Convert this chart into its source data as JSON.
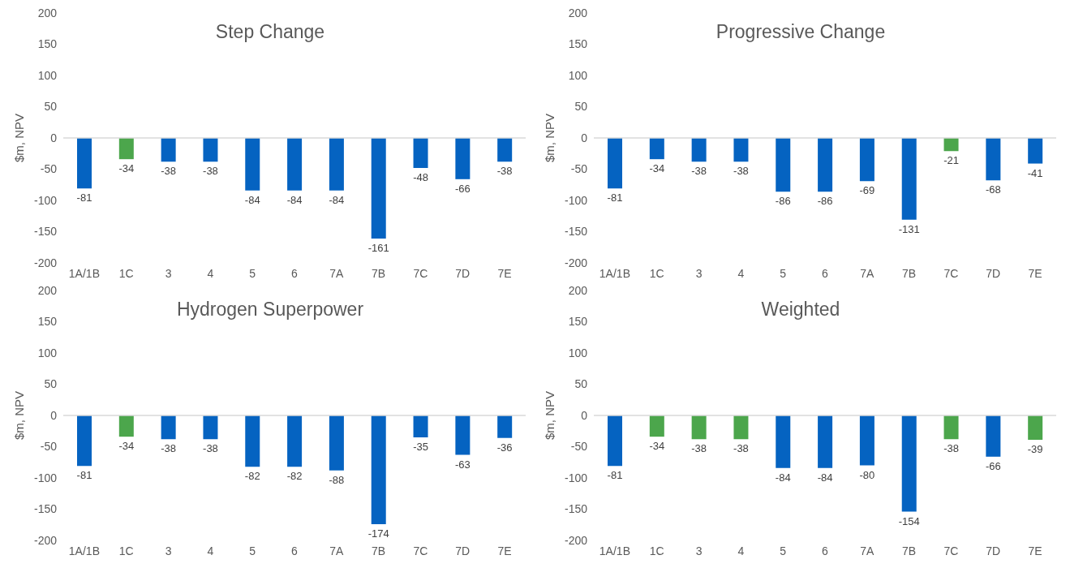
{
  "chart_data": [
    {
      "type": "bar",
      "title": "Step Change",
      "ylabel": "$m, NPV",
      "categories": [
        "1A/1B",
        "1C",
        "3",
        "4",
        "5",
        "6",
        "7A",
        "7B",
        "7C",
        "7D",
        "7E"
      ],
      "values": [
        -81,
        -34,
        -38,
        -38,
        -84,
        -84,
        -84,
        -161,
        -48,
        -66,
        -38
      ],
      "colors": [
        "#0563c1",
        "#4ca64c",
        "#0563c1",
        "#0563c1",
        "#0563c1",
        "#0563c1",
        "#0563c1",
        "#0563c1",
        "#0563c1",
        "#0563c1",
        "#0563c1"
      ],
      "ylim": [
        -200,
        200
      ],
      "yticks": [
        -200,
        -150,
        -100,
        -50,
        0,
        50,
        100,
        150,
        200
      ],
      "data_labels": true,
      "legend": false
    },
    {
      "type": "bar",
      "title": "Progressive Change",
      "ylabel": "$m, NPV",
      "categories": [
        "1A/1B",
        "1C",
        "3",
        "4",
        "5",
        "6",
        "7A",
        "7B",
        "7C",
        "7D",
        "7E"
      ],
      "values": [
        -81,
        -34,
        -38,
        -38,
        -86,
        -86,
        -69,
        -131,
        -21,
        -68,
        -41
      ],
      "colors": [
        "#0563c1",
        "#0563c1",
        "#0563c1",
        "#0563c1",
        "#0563c1",
        "#0563c1",
        "#0563c1",
        "#0563c1",
        "#4ca64c",
        "#0563c1",
        "#0563c1"
      ],
      "ylim": [
        -200,
        200
      ],
      "yticks": [
        -200,
        -150,
        -100,
        -50,
        0,
        50,
        100,
        150,
        200
      ],
      "data_labels": true,
      "legend": false
    },
    {
      "type": "bar",
      "title": "Hydrogen Superpower",
      "ylabel": "$m, NPV",
      "categories": [
        "1A/1B",
        "1C",
        "3",
        "4",
        "5",
        "6",
        "7A",
        "7B",
        "7C",
        "7D",
        "7E"
      ],
      "values": [
        -81,
        -34,
        -38,
        -38,
        -82,
        -82,
        -88,
        -174,
        -35,
        -63,
        -36
      ],
      "colors": [
        "#0563c1",
        "#4ca64c",
        "#0563c1",
        "#0563c1",
        "#0563c1",
        "#0563c1",
        "#0563c1",
        "#0563c1",
        "#0563c1",
        "#0563c1",
        "#0563c1"
      ],
      "ylim": [
        -200,
        200
      ],
      "yticks": [
        -200,
        -150,
        -100,
        -50,
        0,
        50,
        100,
        150,
        200
      ],
      "data_labels": true,
      "legend": false
    },
    {
      "type": "bar",
      "title": "Weighted",
      "ylabel": "$m, NPV",
      "categories": [
        "1A/1B",
        "1C",
        "3",
        "4",
        "5",
        "6",
        "7A",
        "7B",
        "7C",
        "7D",
        "7E"
      ],
      "values": [
        -81,
        -34,
        -38,
        -38,
        -84,
        -84,
        -80,
        -154,
        -38,
        -66,
        -39
      ],
      "colors": [
        "#0563c1",
        "#4ca64c",
        "#4ca64c",
        "#4ca64c",
        "#0563c1",
        "#0563c1",
        "#0563c1",
        "#0563c1",
        "#4ca64c",
        "#0563c1",
        "#4ca64c"
      ],
      "ylim": [
        -200,
        200
      ],
      "yticks": [
        -200,
        -150,
        -100,
        -50,
        0,
        50,
        100,
        150,
        200
      ],
      "data_labels": true,
      "legend": false
    }
  ]
}
